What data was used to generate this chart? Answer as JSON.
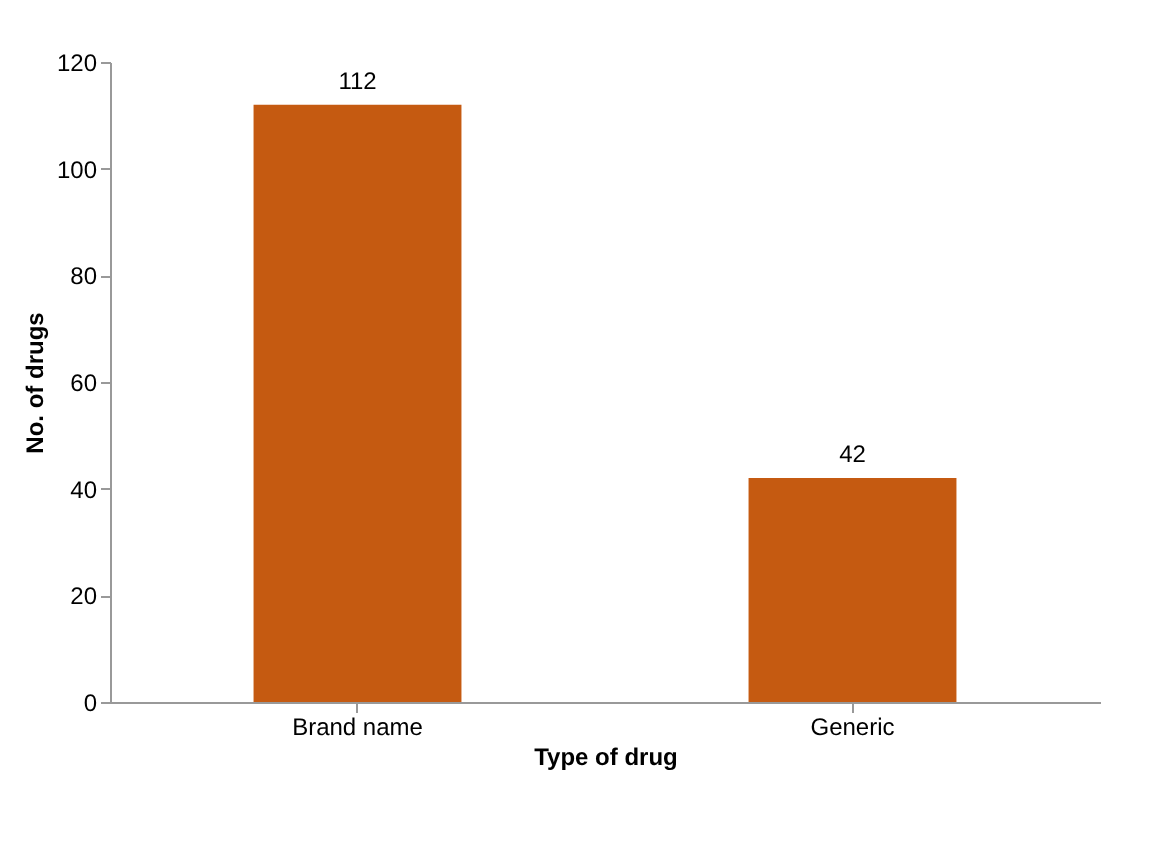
{
  "chart_data": {
    "type": "bar",
    "xlabel": "Type of drug",
    "ylabel": "No. of drugs",
    "categories": [
      "Brand name",
      "Generic"
    ],
    "values": [
      112,
      42
    ],
    "color": "#c55a11",
    "ylim": [
      0,
      120
    ],
    "yticks": [
      0,
      20,
      40,
      60,
      80,
      100,
      120
    ],
    "grid": false,
    "data_labels": true
  }
}
